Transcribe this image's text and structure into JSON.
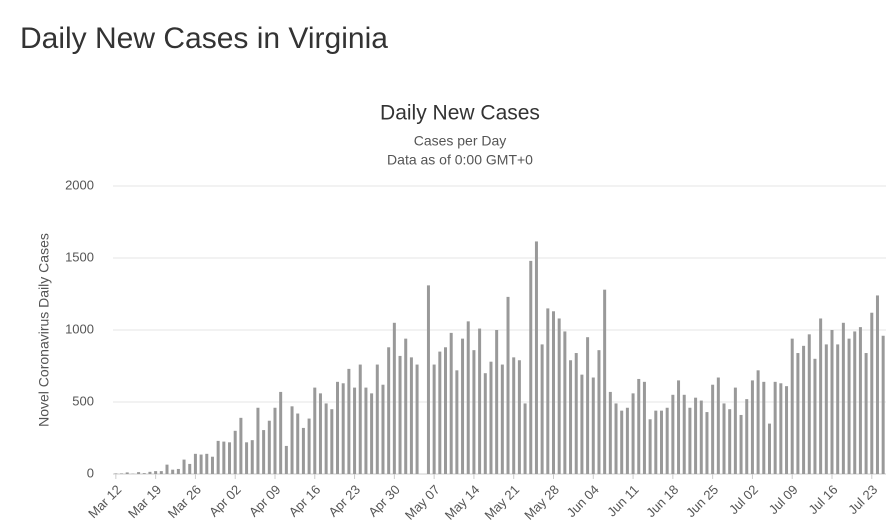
{
  "page_title": "Daily New Cases in Virginia",
  "chart_data": {
    "type": "bar",
    "title": "Daily New Cases",
    "subtitle": "Cases per Day",
    "subtitle2": "Data as of 0:00 GMT+0",
    "y_label": "Novel Coronavirus Daily Cases",
    "categories": [
      "Mar 12",
      null,
      null,
      null,
      null,
      null,
      null,
      "Mar 19",
      null,
      null,
      null,
      null,
      null,
      null,
      "Mar 26",
      null,
      null,
      null,
      null,
      null,
      null,
      "Apr 02",
      null,
      null,
      null,
      null,
      null,
      null,
      "Apr 09",
      null,
      null,
      null,
      null,
      null,
      null,
      "Apr 16",
      null,
      null,
      null,
      null,
      null,
      null,
      "Apr 23",
      null,
      null,
      null,
      null,
      null,
      null,
      "Apr 30",
      null,
      null,
      null,
      null,
      null,
      null,
      "May 07",
      null,
      null,
      null,
      null,
      null,
      null,
      "May 14",
      null,
      null,
      null,
      null,
      null,
      null,
      "May 21",
      null,
      null,
      null,
      null,
      null,
      null,
      "May 28",
      null,
      null,
      null,
      null,
      null,
      null,
      "Jun 04",
      null,
      null,
      null,
      null,
      null,
      null,
      "Jun 11",
      null,
      null,
      null,
      null,
      null,
      null,
      "Jun 18",
      null,
      null,
      null,
      null,
      null,
      null,
      "Jun 25",
      null,
      null,
      null,
      null,
      null,
      null,
      "Jul 02",
      null,
      null,
      null,
      null,
      null,
      null,
      "Jul 09",
      null,
      null,
      null,
      null,
      null,
      null,
      "Jul 16",
      null,
      null,
      null,
      null,
      null,
      null,
      "Jul 23",
      null,
      null
    ],
    "values": [
      4,
      4,
      11,
      2,
      13,
      6,
      15,
      20,
      20,
      65,
      30,
      35,
      100,
      70,
      140,
      135,
      140,
      120,
      230,
      225,
      220,
      300,
      390,
      220,
      235,
      460,
      305,
      370,
      460,
      570,
      195,
      470,
      420,
      320,
      385,
      600,
      560,
      490,
      450,
      640,
      630,
      730,
      600,
      760,
      600,
      560,
      760,
      620,
      880,
      1050,
      820,
      940,
      810,
      760,
      0,
      1310,
      760,
      850,
      880,
      980,
      720,
      940,
      1060,
      860,
      1010,
      700,
      780,
      1000,
      760,
      1230,
      810,
      790,
      490,
      1480,
      1615,
      900,
      1150,
      1130,
      1080,
      990,
      790,
      840,
      690,
      950,
      670,
      860,
      1280,
      570,
      490,
      440,
      460,
      560,
      660,
      640,
      380,
      440,
      440,
      460,
      550,
      650,
      550,
      460,
      530,
      510,
      430,
      620,
      670,
      490,
      450,
      600,
      410,
      520,
      650,
      720,
      640,
      350,
      640,
      630,
      610,
      940,
      840,
      890,
      970,
      800,
      1080,
      900,
      1000,
      900,
      1050,
      940,
      990,
      1020,
      840,
      1120,
      1240,
      960
    ],
    "color": "#999999",
    "ylim": [
      0,
      2000
    ],
    "yticks": [
      0,
      500,
      1000,
      1500,
      2000
    ],
    "grid": true
  }
}
